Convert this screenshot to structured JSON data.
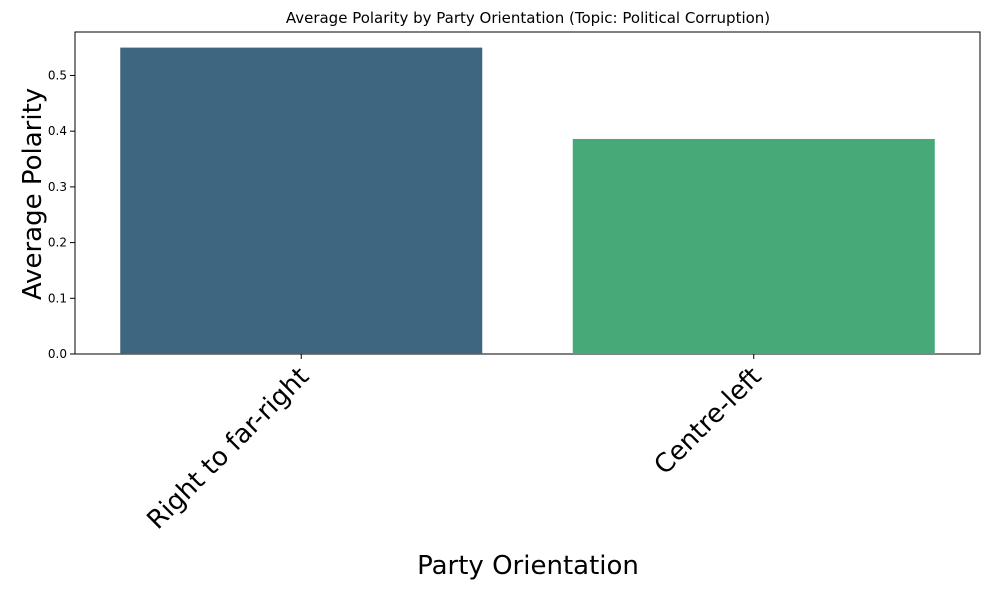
{
  "chart_data": {
    "type": "bar",
    "title": "Average Polarity by Party Orientation (Topic: Political Corruption)",
    "xlabel": "Party Orientation",
    "ylabel": "Average Polarity",
    "categories": [
      "Right to far-right",
      "Centre-left"
    ],
    "values": [
      0.55,
      0.386
    ],
    "ylim": [
      0,
      0.578
    ],
    "yticks": [
      "0.0",
      "0.1",
      "0.2",
      "0.3",
      "0.4",
      "0.5"
    ],
    "grid": false,
    "bar_colors": [
      "#3e6681",
      "#47a878"
    ]
  }
}
